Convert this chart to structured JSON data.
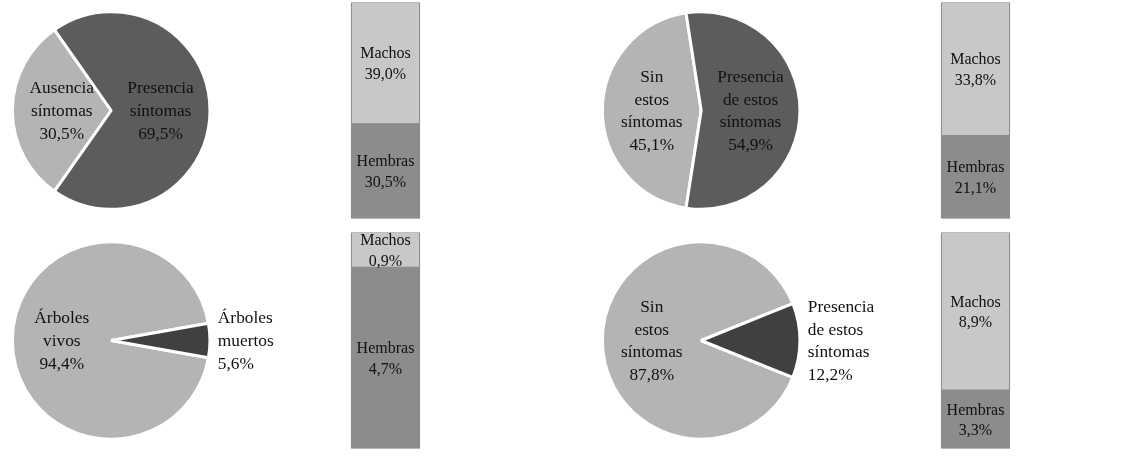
{
  "chart_data": [
    {
      "type": "pie",
      "categories": [
        "Ausencia síntomas",
        "Presencia síntomas"
      ],
      "values": [
        30.5,
        69.5
      ],
      "colors": [
        "#b4b4b4",
        "#5c5c5c"
      ],
      "value_labels": [
        "30,5%",
        "69,5%"
      ]
    },
    {
      "type": "bar",
      "stacked": true,
      "categories": [
        null
      ],
      "series": [
        {
          "name": "Hembras",
          "color": "#8c8c8c",
          "values": [
            30.5
          ],
          "value_labels": [
            "30,5%"
          ]
        },
        {
          "name": "Machos",
          "color": "#c8c8c8",
          "values": [
            39.0
          ],
          "value_labels": [
            "39,0%"
          ]
        }
      ]
    },
    {
      "type": "pie",
      "categories": [
        "Sin estos síntomas",
        "Presencia de estos síntomas"
      ],
      "values": [
        45.1,
        54.9
      ],
      "colors": [
        "#b4b4b4",
        "#5c5c5c"
      ],
      "value_labels": [
        "45,1%",
        "54,9%"
      ]
    },
    {
      "type": "bar",
      "stacked": true,
      "categories": [
        null
      ],
      "series": [
        {
          "name": "Hembras",
          "color": "#8c8c8c",
          "values": [
            21.1
          ],
          "value_labels": [
            "21,1%"
          ]
        },
        {
          "name": "Machos",
          "color": "#c8c8c8",
          "values": [
            33.8
          ],
          "value_labels": [
            "33,8%"
          ]
        }
      ]
    },
    {
      "type": "pie",
      "categories": [
        "Árboles vivos",
        "Árboles muertos"
      ],
      "values": [
        94.4,
        5.6
      ],
      "colors": [
        "#b4b4b4",
        "#404040"
      ],
      "value_labels": [
        "94,4%",
        "5,6%"
      ]
    },
    {
      "type": "bar",
      "stacked": true,
      "categories": [
        null
      ],
      "series": [
        {
          "name": "Hembras",
          "color": "#8c8c8c",
          "values": [
            4.7
          ],
          "value_labels": [
            "4,7%"
          ]
        },
        {
          "name": "Machos",
          "color": "#c8c8c8",
          "values": [
            0.9
          ],
          "value_labels": [
            "0,9%"
          ]
        }
      ]
    },
    {
      "type": "pie",
      "categories": [
        "Sin estos síntomas",
        "Presencia de estos síntomas"
      ],
      "values": [
        87.8,
        12.2
      ],
      "colors": [
        "#b4b4b4",
        "#404040"
      ],
      "value_labels": [
        "87,8%",
        "12,2%"
      ]
    },
    {
      "type": "bar",
      "stacked": true,
      "categories": [
        null
      ],
      "series": [
        {
          "name": "Hembras",
          "color": "#8c8c8c",
          "values": [
            3.3
          ],
          "value_labels": [
            "3,3%"
          ]
        },
        {
          "name": "Machos",
          "color": "#c8c8c8",
          "values": [
            8.9
          ],
          "value_labels": [
            "8,9%"
          ]
        }
      ]
    }
  ]
}
